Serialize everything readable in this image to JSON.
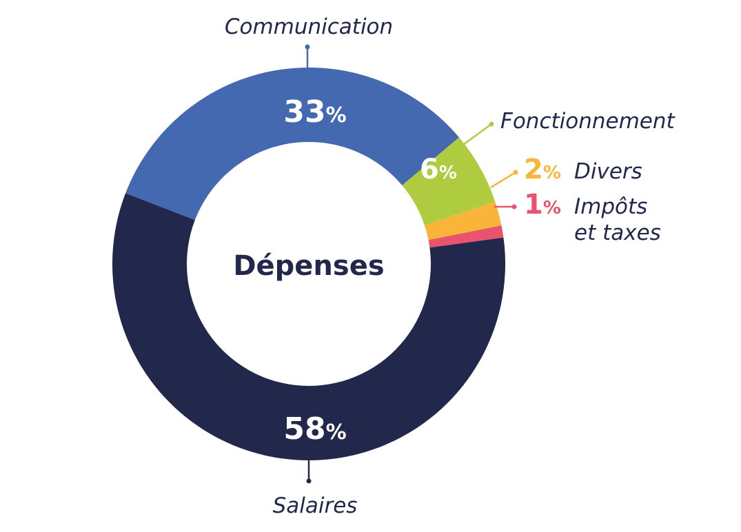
{
  "chart_data": {
    "type": "pie",
    "center_label": "Dépenses",
    "percent_sign": "%",
    "slices": [
      {
        "name": "Communication",
        "value": 33,
        "color": "#4469b0",
        "value_color": "#ffffff",
        "label_color": "#22284b",
        "leader_color": "#4469b0"
      },
      {
        "name": "Fonctionnement",
        "value": 6,
        "color": "#afcb3f",
        "value_color": "#ffffff",
        "label_color": "#22284b",
        "leader_color": "#afcb3f"
      },
      {
        "name": "Divers",
        "value": 2,
        "color": "#f9b53a",
        "value_color": "#f9b53a",
        "label_color": "#22284b",
        "leader_color": "#f9b53a"
      },
      {
        "name": "Impôts et taxes",
        "name_lines": [
          "Impôts",
          "et taxes"
        ],
        "value": 1,
        "color": "#e8546e",
        "value_color": "#e8546e",
        "label_color": "#22284b",
        "leader_color": "#e8546e"
      },
      {
        "name": "Salaires",
        "value": 58,
        "color": "#22284b",
        "value_color": "#ffffff",
        "label_color": "#22284b",
        "leader_color": "#22284b"
      }
    ],
    "center_text_color": "#22284b"
  }
}
